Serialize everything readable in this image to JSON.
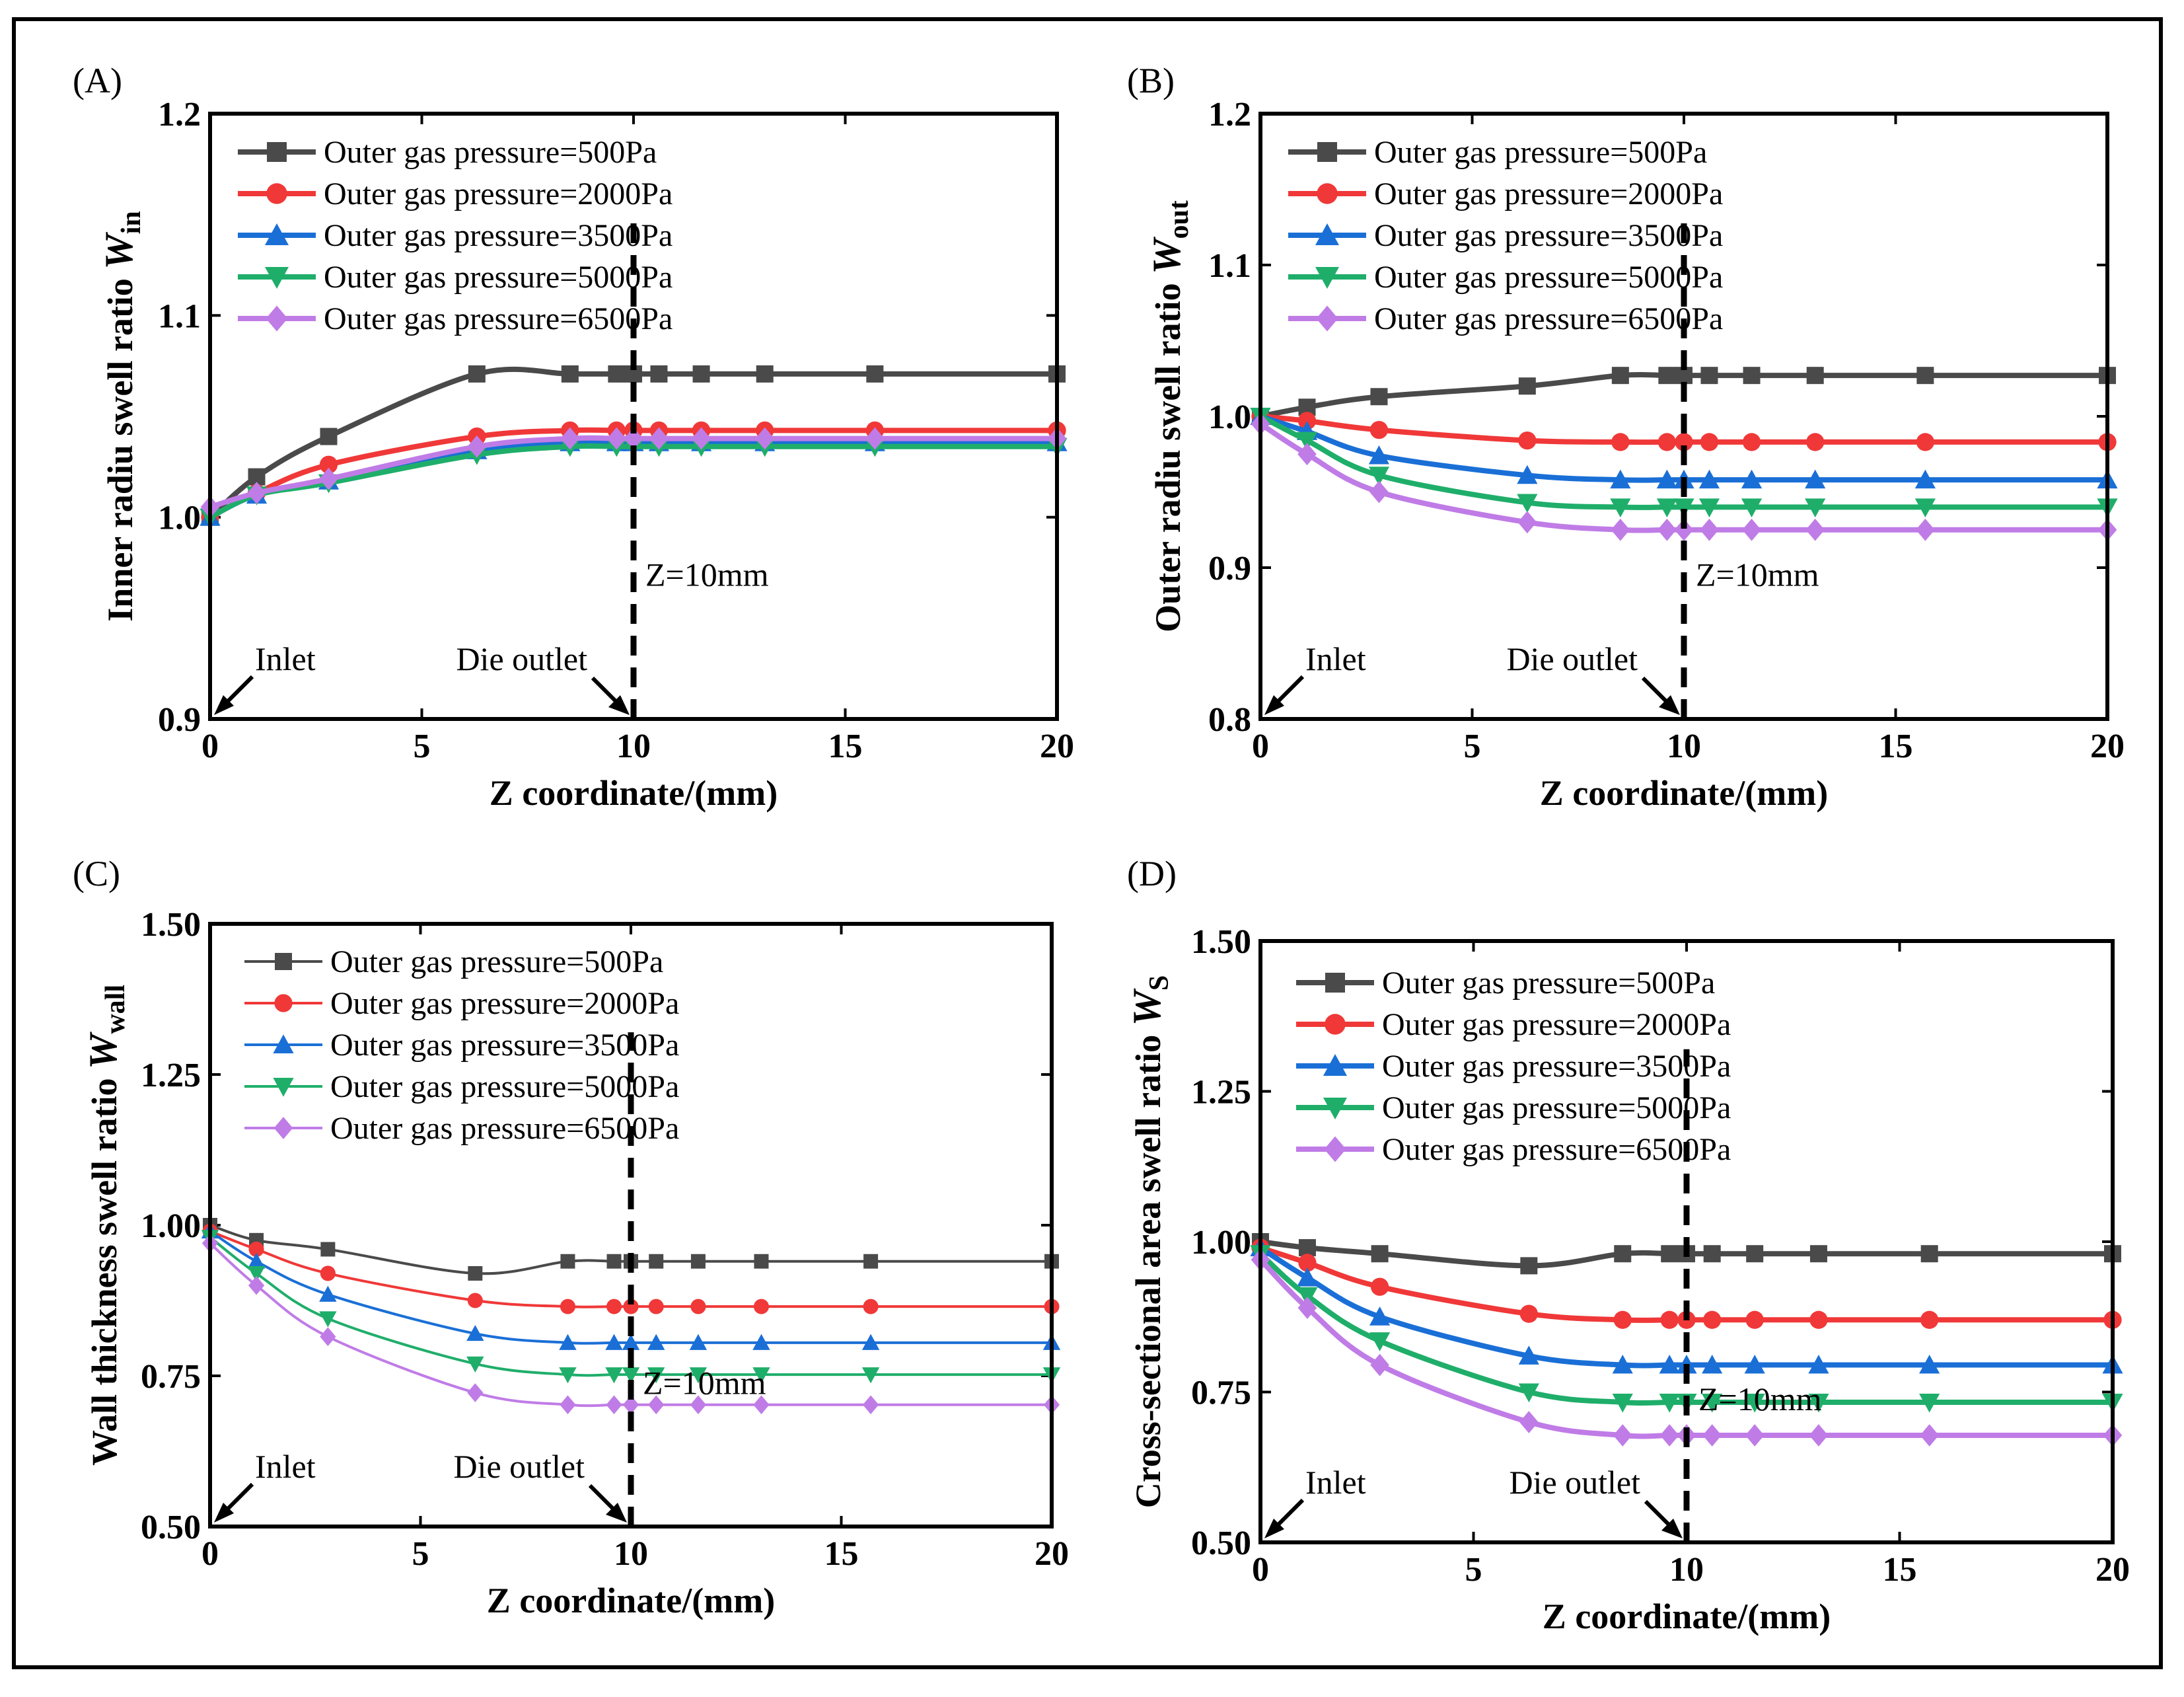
{
  "colors": {
    "s500": "#4a4a4a",
    "s2000": "#f03838",
    "s3500": "#1a6fd6",
    "s5000": "#1fae6a",
    "s6500": "#c07ce6"
  },
  "chart_data": [
    {
      "panel": "(A)",
      "type": "line",
      "xlabel": "Z coordinate/(mm)",
      "ylabel": "Inner radiu swell  ratio ",
      "ylabel_symbol": "W",
      "ylabel_sub": "in",
      "xlim": [
        0,
        20
      ],
      "ylim": [
        0.9,
        1.2
      ],
      "xticks": [
        "0",
        "5",
        "10",
        "15",
        "20"
      ],
      "yticks": [
        "0.9",
        "1.0",
        "1.1",
        "1.2"
      ],
      "marker_x": [
        0,
        1.1,
        2.8,
        6.3,
        8.5,
        9.6,
        10.0,
        10.6,
        11.6,
        13.1,
        15.7,
        20
      ],
      "series": [
        {
          "name": "Outer gas pressure=500Pa",
          "marker": "square",
          "values": [
            1.0,
            1.02,
            1.04,
            1.071,
            1.071,
            1.071,
            1.071,
            1.071,
            1.071,
            1.071,
            1.071,
            1.071
          ]
        },
        {
          "name": "Outer gas pressure=2000Pa",
          "marker": "circle",
          "values": [
            1.0,
            1.012,
            1.026,
            1.04,
            1.043,
            1.043,
            1.043,
            1.043,
            1.043,
            1.043,
            1.043,
            1.043
          ]
        },
        {
          "name": "Outer gas pressure=3500Pa",
          "marker": "triangle-up",
          "values": [
            1.0,
            1.011,
            1.018,
            1.033,
            1.037,
            1.037,
            1.037,
            1.037,
            1.037,
            1.037,
            1.037,
            1.037
          ]
        },
        {
          "name": "Outer gas pressure=5000Pa",
          "marker": "triangle-down",
          "values": [
            1.0,
            1.011,
            1.017,
            1.031,
            1.035,
            1.035,
            1.035,
            1.035,
            1.035,
            1.035,
            1.035,
            1.035
          ]
        },
        {
          "name": "Outer gas pressure=6500Pa",
          "marker": "diamond",
          "values": [
            1.005,
            1.012,
            1.019,
            1.035,
            1.039,
            1.039,
            1.039,
            1.039,
            1.039,
            1.039,
            1.039,
            1.039
          ]
        }
      ],
      "vline_x": 10,
      "annotations": {
        "inlet": "Inlet",
        "die_outlet": "Die outlet",
        "z": "Z=10mm"
      }
    },
    {
      "panel": "(B)",
      "type": "line",
      "xlabel": "Z coordinate/(mm)",
      "ylabel": "Outer radiu swell  ratio ",
      "ylabel_symbol": "W",
      "ylabel_sub": "out",
      "xlim": [
        0,
        20
      ],
      "ylim": [
        0.8,
        1.2
      ],
      "xticks": [
        "0",
        "5",
        "10",
        "15",
        "20"
      ],
      "yticks": [
        "0.8",
        "0.9",
        "1.0",
        "1.1",
        "1.2"
      ],
      "marker_x": [
        0,
        1.1,
        2.8,
        6.3,
        8.5,
        9.6,
        10.0,
        10.6,
        11.6,
        13.1,
        15.7,
        20
      ],
      "series": [
        {
          "name": "Outer gas pressure=500Pa",
          "marker": "square",
          "values": [
            1.0,
            1.006,
            1.013,
            1.02,
            1.027,
            1.027,
            1.027,
            1.027,
            1.027,
            1.027,
            1.027,
            1.027
          ]
        },
        {
          "name": "Outer gas pressure=2000Pa",
          "marker": "circle",
          "values": [
            1.0,
            0.997,
            0.991,
            0.984,
            0.983,
            0.983,
            0.983,
            0.983,
            0.983,
            0.983,
            0.983,
            0.983
          ]
        },
        {
          "name": "Outer gas pressure=3500Pa",
          "marker": "triangle-up",
          "values": [
            1.0,
            0.99,
            0.974,
            0.961,
            0.958,
            0.958,
            0.958,
            0.958,
            0.958,
            0.958,
            0.958,
            0.958
          ]
        },
        {
          "name": "Outer gas pressure=5000Pa",
          "marker": "triangle-down",
          "values": [
            1.0,
            0.984,
            0.961,
            0.943,
            0.94,
            0.94,
            0.94,
            0.94,
            0.94,
            0.94,
            0.94,
            0.94
          ]
        },
        {
          "name": "Outer gas pressure=6500Pa",
          "marker": "diamond",
          "values": [
            0.995,
            0.975,
            0.95,
            0.93,
            0.925,
            0.925,
            0.925,
            0.925,
            0.925,
            0.925,
            0.925,
            0.925
          ]
        }
      ],
      "vline_x": 10,
      "annotations": {
        "inlet": "Inlet",
        "die_outlet": "Die outlet",
        "z": "Z=10mm"
      }
    },
    {
      "panel": "(C)",
      "type": "line",
      "xlabel": "Z coordinate/(mm)",
      "ylabel": "Wall thickness swell  ratio ",
      "ylabel_symbol": "W",
      "ylabel_sub": "wall",
      "xlim": [
        0,
        20
      ],
      "ylim": [
        0.5,
        1.5
      ],
      "xticks": [
        "0",
        "5",
        "10",
        "15",
        "20"
      ],
      "yticks": [
        "0.50",
        "0.75",
        "1.00",
        "1.25",
        "1.50"
      ],
      "marker_x": [
        0,
        1.1,
        2.8,
        6.3,
        8.5,
        9.6,
        10.0,
        10.6,
        11.6,
        13.1,
        15.7,
        20
      ],
      "series": [
        {
          "name": "Outer gas pressure=500Pa",
          "marker": "square",
          "values": [
            1.0,
            0.975,
            0.96,
            0.92,
            0.94,
            0.94,
            0.94,
            0.94,
            0.94,
            0.94,
            0.94,
            0.94
          ]
        },
        {
          "name": "Outer gas pressure=2000Pa",
          "marker": "circle",
          "values": [
            0.99,
            0.96,
            0.92,
            0.875,
            0.865,
            0.865,
            0.865,
            0.865,
            0.865,
            0.865,
            0.865,
            0.865
          ]
        },
        {
          "name": "Outer gas pressure=3500Pa",
          "marker": "triangle-up",
          "values": [
            0.99,
            0.94,
            0.885,
            0.82,
            0.805,
            0.805,
            0.805,
            0.805,
            0.805,
            0.805,
            0.805,
            0.805
          ]
        },
        {
          "name": "Outer gas pressure=5000Pa",
          "marker": "triangle-down",
          "values": [
            0.98,
            0.92,
            0.845,
            0.77,
            0.752,
            0.752,
            0.752,
            0.752,
            0.752,
            0.752,
            0.752,
            0.752
          ]
        },
        {
          "name": "Outer gas pressure=6500Pa",
          "marker": "diamond",
          "values": [
            0.97,
            0.9,
            0.815,
            0.722,
            0.702,
            0.702,
            0.702,
            0.702,
            0.702,
            0.702,
            0.702,
            0.702
          ]
        }
      ],
      "vline_x": 10,
      "annotations": {
        "inlet": "Inlet",
        "die_outlet": "Die outlet",
        "z": "Z=10mm"
      }
    },
    {
      "panel": "(D)",
      "type": "line",
      "xlabel": "Z coordinate/(mm)",
      "ylabel": "Cross-sectional area swell  ratio ",
      "ylabel_symbol": "W",
      "ylabel_sub": "S",
      "xlim": [
        0,
        20
      ],
      "ylim": [
        0.5,
        1.5
      ],
      "xticks": [
        "0",
        "5",
        "10",
        "15",
        "20"
      ],
      "yticks": [
        "0.50",
        "0.75",
        "1.00",
        "1.25",
        "1.50"
      ],
      "marker_x": [
        0,
        1.1,
        2.8,
        6.3,
        8.5,
        9.6,
        10.0,
        10.6,
        11.6,
        13.1,
        15.7,
        20
      ],
      "series": [
        {
          "name": "Outer gas pressure=500Pa",
          "marker": "square",
          "values": [
            1.0,
            0.99,
            0.98,
            0.96,
            0.98,
            0.98,
            0.98,
            0.98,
            0.98,
            0.98,
            0.98,
            0.98
          ]
        },
        {
          "name": "Outer gas pressure=2000Pa",
          "marker": "circle",
          "values": [
            0.99,
            0.965,
            0.925,
            0.88,
            0.87,
            0.87,
            0.87,
            0.87,
            0.87,
            0.87,
            0.87,
            0.87
          ]
        },
        {
          "name": "Outer gas pressure=3500Pa",
          "marker": "triangle-up",
          "values": [
            0.99,
            0.94,
            0.875,
            0.81,
            0.795,
            0.795,
            0.795,
            0.795,
            0.795,
            0.795,
            0.795,
            0.795
          ]
        },
        {
          "name": "Outer gas pressure=5000Pa",
          "marker": "triangle-down",
          "values": [
            0.98,
            0.91,
            0.835,
            0.75,
            0.733,
            0.733,
            0.733,
            0.733,
            0.733,
            0.733,
            0.733,
            0.733
          ]
        },
        {
          "name": "Outer gas pressure=6500Pa",
          "marker": "diamond",
          "values": [
            0.97,
            0.89,
            0.795,
            0.7,
            0.678,
            0.678,
            0.678,
            0.678,
            0.678,
            0.678,
            0.678,
            0.678
          ]
        }
      ],
      "vline_x": 10,
      "annotations": {
        "inlet": "Inlet",
        "die_outlet": "Die outlet",
        "z": "Z=10mm"
      }
    }
  ]
}
